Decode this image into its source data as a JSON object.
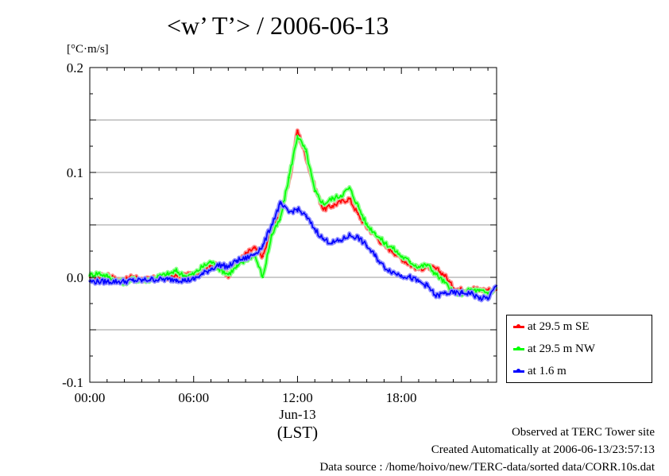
{
  "chart_data": {
    "type": "line",
    "title": "<w’ T’> / 2006-06-13",
    "unit": "[°C·m/s]",
    "xlabel": "(LST)",
    "date_label": "Jun-13",
    "x_ticks": [
      "00:00",
      "06:00",
      "12:00",
      "18:00"
    ],
    "x_tick_hours": [
      0,
      6,
      12,
      18
    ],
    "xlim": [
      0,
      23.5
    ],
    "y_ticks": [
      "0.2",
      "0.1",
      "0.0",
      "-0.1"
    ],
    "y_tick_values": [
      0.2,
      0.1,
      0.0,
      -0.1
    ],
    "ylim": [
      -0.1,
      0.2
    ],
    "grid": true,
    "legend_position": "bottom-right-outside",
    "series": [
      {
        "name": "at 29.5 m SE",
        "color": "#ff0000",
        "halo": "#ff9090",
        "x": [
          0,
          0.5,
          1,
          1.5,
          2,
          2.5,
          3,
          3.5,
          4,
          4.5,
          5,
          5.5,
          6,
          6.5,
          7,
          7.5,
          8,
          8.5,
          9,
          9.5,
          10,
          10.5,
          11,
          11.5,
          12,
          12.5,
          13,
          13.5,
          14,
          14.5,
          15,
          15.5,
          16,
          16.5,
          17,
          17.5,
          18,
          18.5,
          19,
          19.5,
          20,
          20.5,
          21,
          21.5,
          22,
          22.5,
          23,
          23.5
        ],
        "values": [
          0.0,
          0.0,
          0.003,
          -0.002,
          -0.003,
          0.001,
          -0.002,
          -0.002,
          0.0,
          0.0,
          0.002,
          0.002,
          0.002,
          0.005,
          0.013,
          0.01,
          0.002,
          0.013,
          0.022,
          0.028,
          0.02,
          0.045,
          0.06,
          0.09,
          0.14,
          0.115,
          0.085,
          0.065,
          0.068,
          0.072,
          0.075,
          0.06,
          0.048,
          0.04,
          0.03,
          0.025,
          0.018,
          0.012,
          0.008,
          0.01,
          0.008,
          0.002,
          -0.01,
          -0.012,
          -0.01,
          -0.012,
          -0.012,
          -0.012
        ]
      },
      {
        "name": "at 29.5 m NW",
        "color": "#00ff00",
        "halo": "#90ff90",
        "x": [
          0,
          0.5,
          1,
          1.5,
          2,
          2.5,
          3,
          3.5,
          4,
          4.5,
          5,
          5.5,
          6,
          6.5,
          7,
          7.5,
          8,
          8.5,
          9,
          9.5,
          10,
          10.5,
          11,
          11.5,
          12,
          12.5,
          13,
          13.5,
          14,
          14.5,
          15,
          15.5,
          16,
          16.5,
          17,
          17.5,
          18,
          18.5,
          19,
          19.5,
          20,
          20.5,
          21,
          21.5,
          22,
          22.5,
          23,
          23.5
        ],
        "values": [
          0.002,
          0.004,
          0.001,
          -0.003,
          -0.005,
          -0.002,
          -0.003,
          -0.002,
          0.001,
          0.003,
          0.006,
          0.001,
          0.003,
          0.01,
          0.015,
          0.008,
          0.003,
          0.01,
          0.016,
          0.022,
          0.0,
          0.04,
          0.055,
          0.095,
          0.135,
          0.12,
          0.082,
          0.07,
          0.075,
          0.078,
          0.085,
          0.068,
          0.05,
          0.042,
          0.033,
          0.028,
          0.02,
          0.015,
          0.01,
          0.012,
          0.003,
          -0.005,
          -0.015,
          -0.015,
          -0.012,
          -0.013,
          -0.015,
          -0.01
        ]
      },
      {
        "name": "at 1.6 m",
        "color": "#0000ff",
        "halo": "#9090ff",
        "x": [
          0,
          0.5,
          1,
          1.5,
          2,
          2.5,
          3,
          3.5,
          4,
          4.5,
          5,
          5.5,
          6,
          6.5,
          7,
          7.5,
          8,
          8.5,
          9,
          9.5,
          10,
          10.5,
          11,
          11.5,
          12,
          12.5,
          13,
          13.5,
          14,
          14.5,
          15,
          15.5,
          16,
          16.5,
          17,
          17.5,
          18,
          18.5,
          19,
          19.5,
          20,
          20.5,
          21,
          21.5,
          22,
          22.5,
          23,
          23.5
        ],
        "values": [
          -0.004,
          -0.004,
          -0.004,
          -0.004,
          -0.004,
          -0.003,
          -0.003,
          -0.002,
          -0.002,
          -0.002,
          -0.002,
          -0.003,
          -0.002,
          0.003,
          0.008,
          0.012,
          0.01,
          0.016,
          0.018,
          0.022,
          0.03,
          0.05,
          0.07,
          0.062,
          0.065,
          0.058,
          0.046,
          0.036,
          0.033,
          0.035,
          0.04,
          0.038,
          0.03,
          0.02,
          0.01,
          0.005,
          0.002,
          0.0,
          -0.004,
          -0.008,
          -0.018,
          -0.015,
          -0.015,
          -0.015,
          -0.015,
          -0.02,
          -0.02,
          -0.008
        ]
      }
    ]
  },
  "footer": {
    "line1": "Observed at TERC Tower site",
    "line2": "Created Automatically at 2006-06-13/23:57:13",
    "line3": "Data source : /home/hoivo/new/TERC-data/sorted  data/CORR.10s.dat"
  }
}
